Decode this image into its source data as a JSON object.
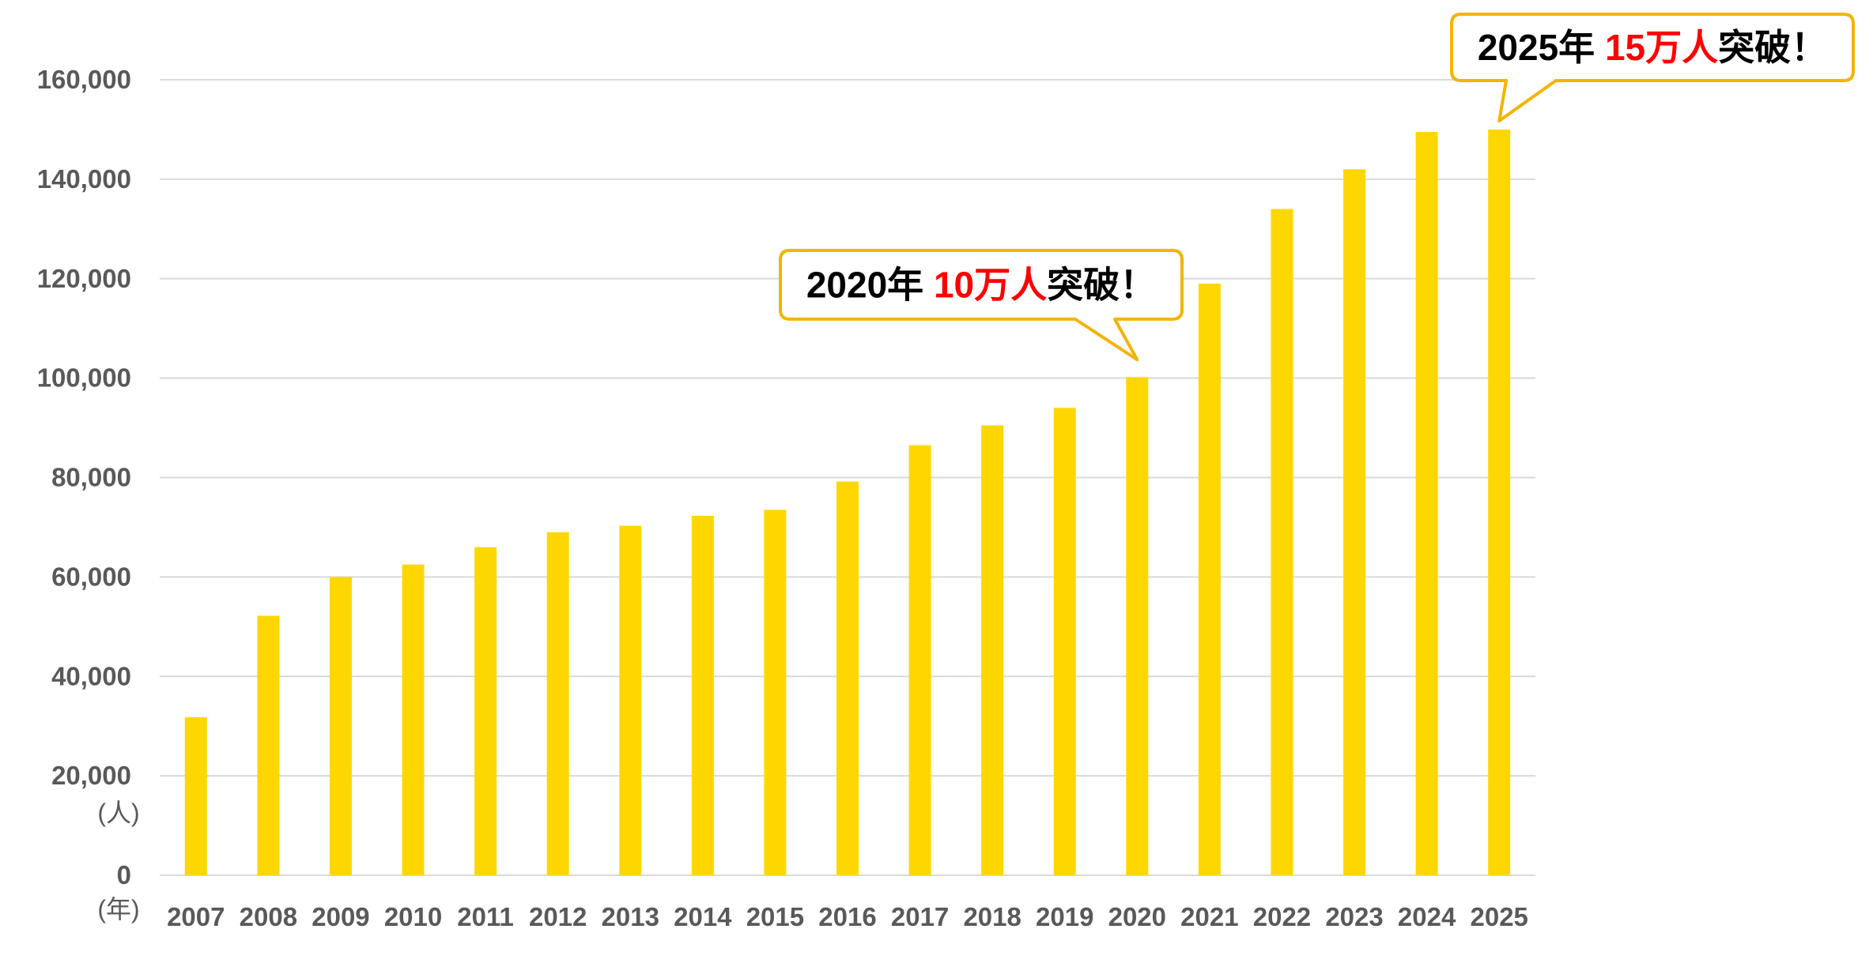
{
  "chart_data": {
    "type": "bar",
    "categories": [
      "2007",
      "2008",
      "2009",
      "2010",
      "2011",
      "2012",
      "2013",
      "2014",
      "2015",
      "2016",
      "2017",
      "2018",
      "2019",
      "2020",
      "2021",
      "2022",
      "2023",
      "2024",
      "2025"
    ],
    "series": [
      {
        "values": [
          31800,
          52200,
          60000,
          62500,
          66000,
          69000,
          70300,
          72300,
          73500,
          79200,
          86500,
          90500,
          94000,
          100200,
          119000,
          134000,
          142000,
          149500,
          150000
        ],
        "color": "#FFD700"
      }
    ],
    "y_ticks": [
      "0",
      "20,000",
      "40,000",
      "60,000",
      "80,000",
      "100,000",
      "120,000",
      "140,000",
      "160,000"
    ],
    "ylim": [
      0,
      160000
    ],
    "y_unit": "(人)",
    "x_unit": "(年)",
    "grid": true,
    "grid_color": "#D9D9D9",
    "legend": "none",
    "annotations": [
      {
        "x": "2020",
        "y": 100200,
        "parts": [
          {
            "text": "2020年 ",
            "color": "#000000"
          },
          {
            "text": "10万人",
            "color": "#FF0000"
          },
          {
            "text": "突破！",
            "color": "#000000"
          }
        ],
        "border_color": "#F4B400"
      },
      {
        "x": "2025",
        "y": 150000,
        "parts": [
          {
            "text": "2025年 ",
            "color": "#000000"
          },
          {
            "text": "15万人",
            "color": "#FF0000"
          },
          {
            "text": "突破！",
            "color": "#000000"
          }
        ],
        "border_color": "#F4B400"
      }
    ]
  }
}
